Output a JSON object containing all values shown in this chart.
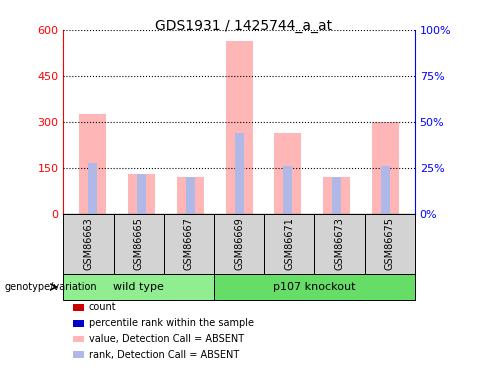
{
  "title": "GDS1931 / 1425744_a_at",
  "samples": [
    "GSM86663",
    "GSM86665",
    "GSM86667",
    "GSM86669",
    "GSM86671",
    "GSM86673",
    "GSM86675"
  ],
  "value_bars": [
    325,
    130,
    120,
    565,
    265,
    120,
    300
  ],
  "rank_bars": [
    165,
    130,
    120,
    265,
    155,
    120,
    155
  ],
  "ylim_left": [
    0,
    600
  ],
  "ylim_right": [
    0,
    100
  ],
  "yticks_left": [
    0,
    150,
    300,
    450,
    600
  ],
  "yticks_left_labels": [
    "0",
    "150",
    "300",
    "450",
    "600"
  ],
  "yticks_right": [
    0,
    25,
    50,
    75,
    100
  ],
  "yticks_right_labels": [
    "0%",
    "25%",
    "50%",
    "75%",
    "100%"
  ],
  "bar_color_value": "#ffb6b6",
  "bar_color_rank": "#b0b8e8",
  "label_area_color": "#d3d3d3",
  "wt_color": "#90ee90",
  "ko_color": "#66dd66",
  "wt_label": "wild type",
  "ko_label": "p107 knockout",
  "wt_count": 3,
  "ko_count": 4,
  "genotype_label": "genotype/variation",
  "legend_items": [
    {
      "color": "#cc0000",
      "label": "count"
    },
    {
      "color": "#0000cc",
      "label": "percentile rank within the sample"
    },
    {
      "color": "#ffb6b6",
      "label": "value, Detection Call = ABSENT"
    },
    {
      "color": "#b0b8e8",
      "label": "rank, Detection Call = ABSENT"
    }
  ]
}
